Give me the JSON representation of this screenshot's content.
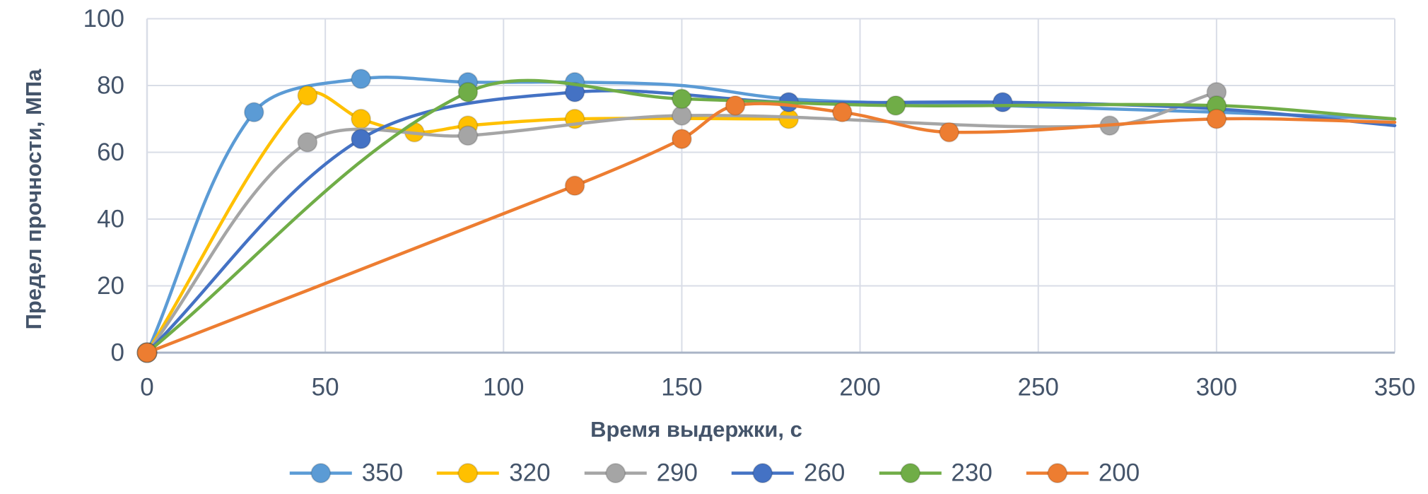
{
  "chart_data": {
    "type": "line",
    "title": "",
    "xlabel": "Время выдержки, с",
    "ylabel": "Предел прочности, МПа",
    "xlim": [
      0,
      350
    ],
    "ylim": [
      0,
      100
    ],
    "x_ticks": [
      0,
      50,
      100,
      150,
      200,
      250,
      300,
      350
    ],
    "y_ticks": [
      0,
      20,
      40,
      60,
      80,
      100
    ],
    "grid": true,
    "smooth_lines": true,
    "legend_position": "bottom-center",
    "colors": {
      "text": "#44546A",
      "gridline": "#D9DDE7",
      "axis_line": "#A9B4C6",
      "background": "#FFFFFF"
    },
    "series": [
      {
        "name": "350",
        "color": "#5B9BD5",
        "points": [
          [
            0,
            0,
            1
          ],
          [
            30,
            72,
            1
          ],
          [
            60,
            82,
            1
          ],
          [
            90,
            81,
            1
          ],
          [
            120,
            81,
            1
          ],
          [
            150,
            80,
            0
          ],
          [
            180,
            76,
            0
          ],
          [
            240,
            74,
            0
          ],
          [
            300,
            72,
            0
          ],
          [
            350,
            70,
            0
          ]
        ]
      },
      {
        "name": "320",
        "color": "#FFC000",
        "points": [
          [
            0,
            0,
            1
          ],
          [
            45,
            77,
            1
          ],
          [
            60,
            70,
            1
          ],
          [
            75,
            66,
            1
          ],
          [
            90,
            68,
            1
          ],
          [
            120,
            70,
            1
          ],
          [
            180,
            70,
            1
          ]
        ]
      },
      {
        "name": "290",
        "color": "#A5A5A5",
        "points": [
          [
            0,
            0,
            1
          ],
          [
            45,
            63,
            1
          ],
          [
            90,
            65,
            1
          ],
          [
            150,
            71,
            1
          ],
          [
            270,
            68,
            1
          ],
          [
            300,
            78,
            1
          ]
        ]
      },
      {
        "name": "260",
        "color": "#4472C4",
        "points": [
          [
            0,
            0,
            1
          ],
          [
            60,
            64,
            1
          ],
          [
            120,
            78,
            1
          ],
          [
            180,
            75,
            1
          ],
          [
            240,
            75,
            1
          ],
          [
            300,
            73,
            0
          ],
          [
            350,
            68,
            0
          ]
        ]
      },
      {
        "name": "230",
        "color": "#70AD47",
        "points": [
          [
            0,
            0,
            1
          ],
          [
            90,
            78,
            1
          ],
          [
            150,
            76,
            1
          ],
          [
            210,
            74,
            1
          ],
          [
            300,
            74,
            1
          ],
          [
            350,
            70,
            0
          ]
        ]
      },
      {
        "name": "200",
        "color": "#ED7D31",
        "points": [
          [
            0,
            0,
            1
          ],
          [
            120,
            50,
            1
          ],
          [
            150,
            64,
            1
          ],
          [
            165,
            74,
            1
          ],
          [
            195,
            72,
            1
          ],
          [
            225,
            66,
            1
          ],
          [
            300,
            70,
            1
          ],
          [
            350,
            69,
            0
          ]
        ]
      }
    ]
  }
}
